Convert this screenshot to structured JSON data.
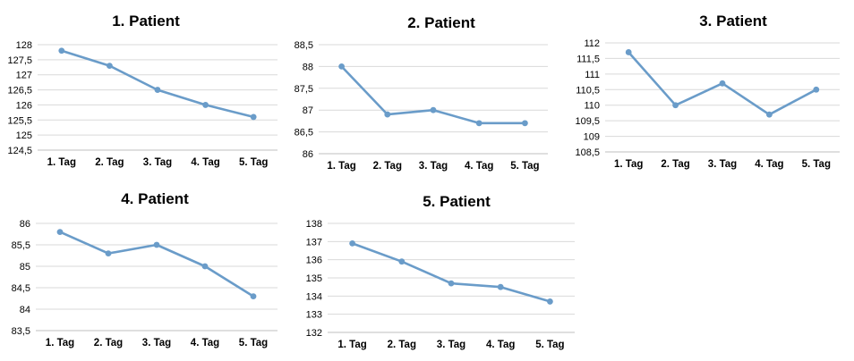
{
  "colors": {
    "series": "#6A9CC9",
    "grid": "#D9D9D9",
    "axis": "#BFBFBF"
  },
  "chart_data": [
    {
      "type": "line",
      "title": "1. Patient",
      "categories": [
        "1. Tag",
        "2. Tag",
        "3. Tag",
        "4. Tag",
        "5. Tag"
      ],
      "values": [
        127.8,
        127.3,
        126.5,
        126.0,
        125.6
      ],
      "ylim": [
        124.5,
        128
      ],
      "yticks": [
        "124,5",
        "125",
        "125,5",
        "126",
        "126,5",
        "127",
        "127,5",
        "128"
      ],
      "grid": true
    },
    {
      "type": "line",
      "title": "2. Patient",
      "categories": [
        "1. Tag",
        "2. Tag",
        "3. Tag",
        "4. Tag",
        "5. Tag"
      ],
      "values": [
        88.0,
        86.9,
        87.0,
        86.7,
        86.7
      ],
      "ylim": [
        86,
        88.5
      ],
      "yticks": [
        "86",
        "86,5",
        "87",
        "87,5",
        "88",
        "88,5"
      ],
      "grid": true
    },
    {
      "type": "line",
      "title": "3. Patient",
      "categories": [
        "1. Tag",
        "2. Tag",
        "3. Tag",
        "4. Tag",
        "5. Tag"
      ],
      "values": [
        111.7,
        110.0,
        110.7,
        109.7,
        110.5
      ],
      "ylim": [
        108.5,
        112
      ],
      "yticks": [
        "108,5",
        "109",
        "109,5",
        "110",
        "110,5",
        "111",
        "111,5",
        "112"
      ],
      "grid": true
    },
    {
      "type": "line",
      "title": "4. Patient",
      "categories": [
        "1. Tag",
        "2. Tag",
        "3. Tag",
        "4. Tag",
        "5. Tag"
      ],
      "values": [
        85.8,
        85.3,
        85.5,
        85.0,
        84.3
      ],
      "ylim": [
        83.5,
        86
      ],
      "yticks": [
        "83,5",
        "84",
        "84,5",
        "85",
        "85,5",
        "86"
      ],
      "grid": true
    },
    {
      "type": "line",
      "title": "5. Patient",
      "categories": [
        "1. Tag",
        "2. Tag",
        "3. Tag",
        "4. Tag",
        "5. Tag"
      ],
      "values": [
        136.9,
        135.9,
        134.7,
        134.5,
        133.7
      ],
      "ylim": [
        132,
        138
      ],
      "yticks": [
        "132",
        "133",
        "134",
        "135",
        "136",
        "137",
        "138"
      ],
      "grid": true
    }
  ]
}
